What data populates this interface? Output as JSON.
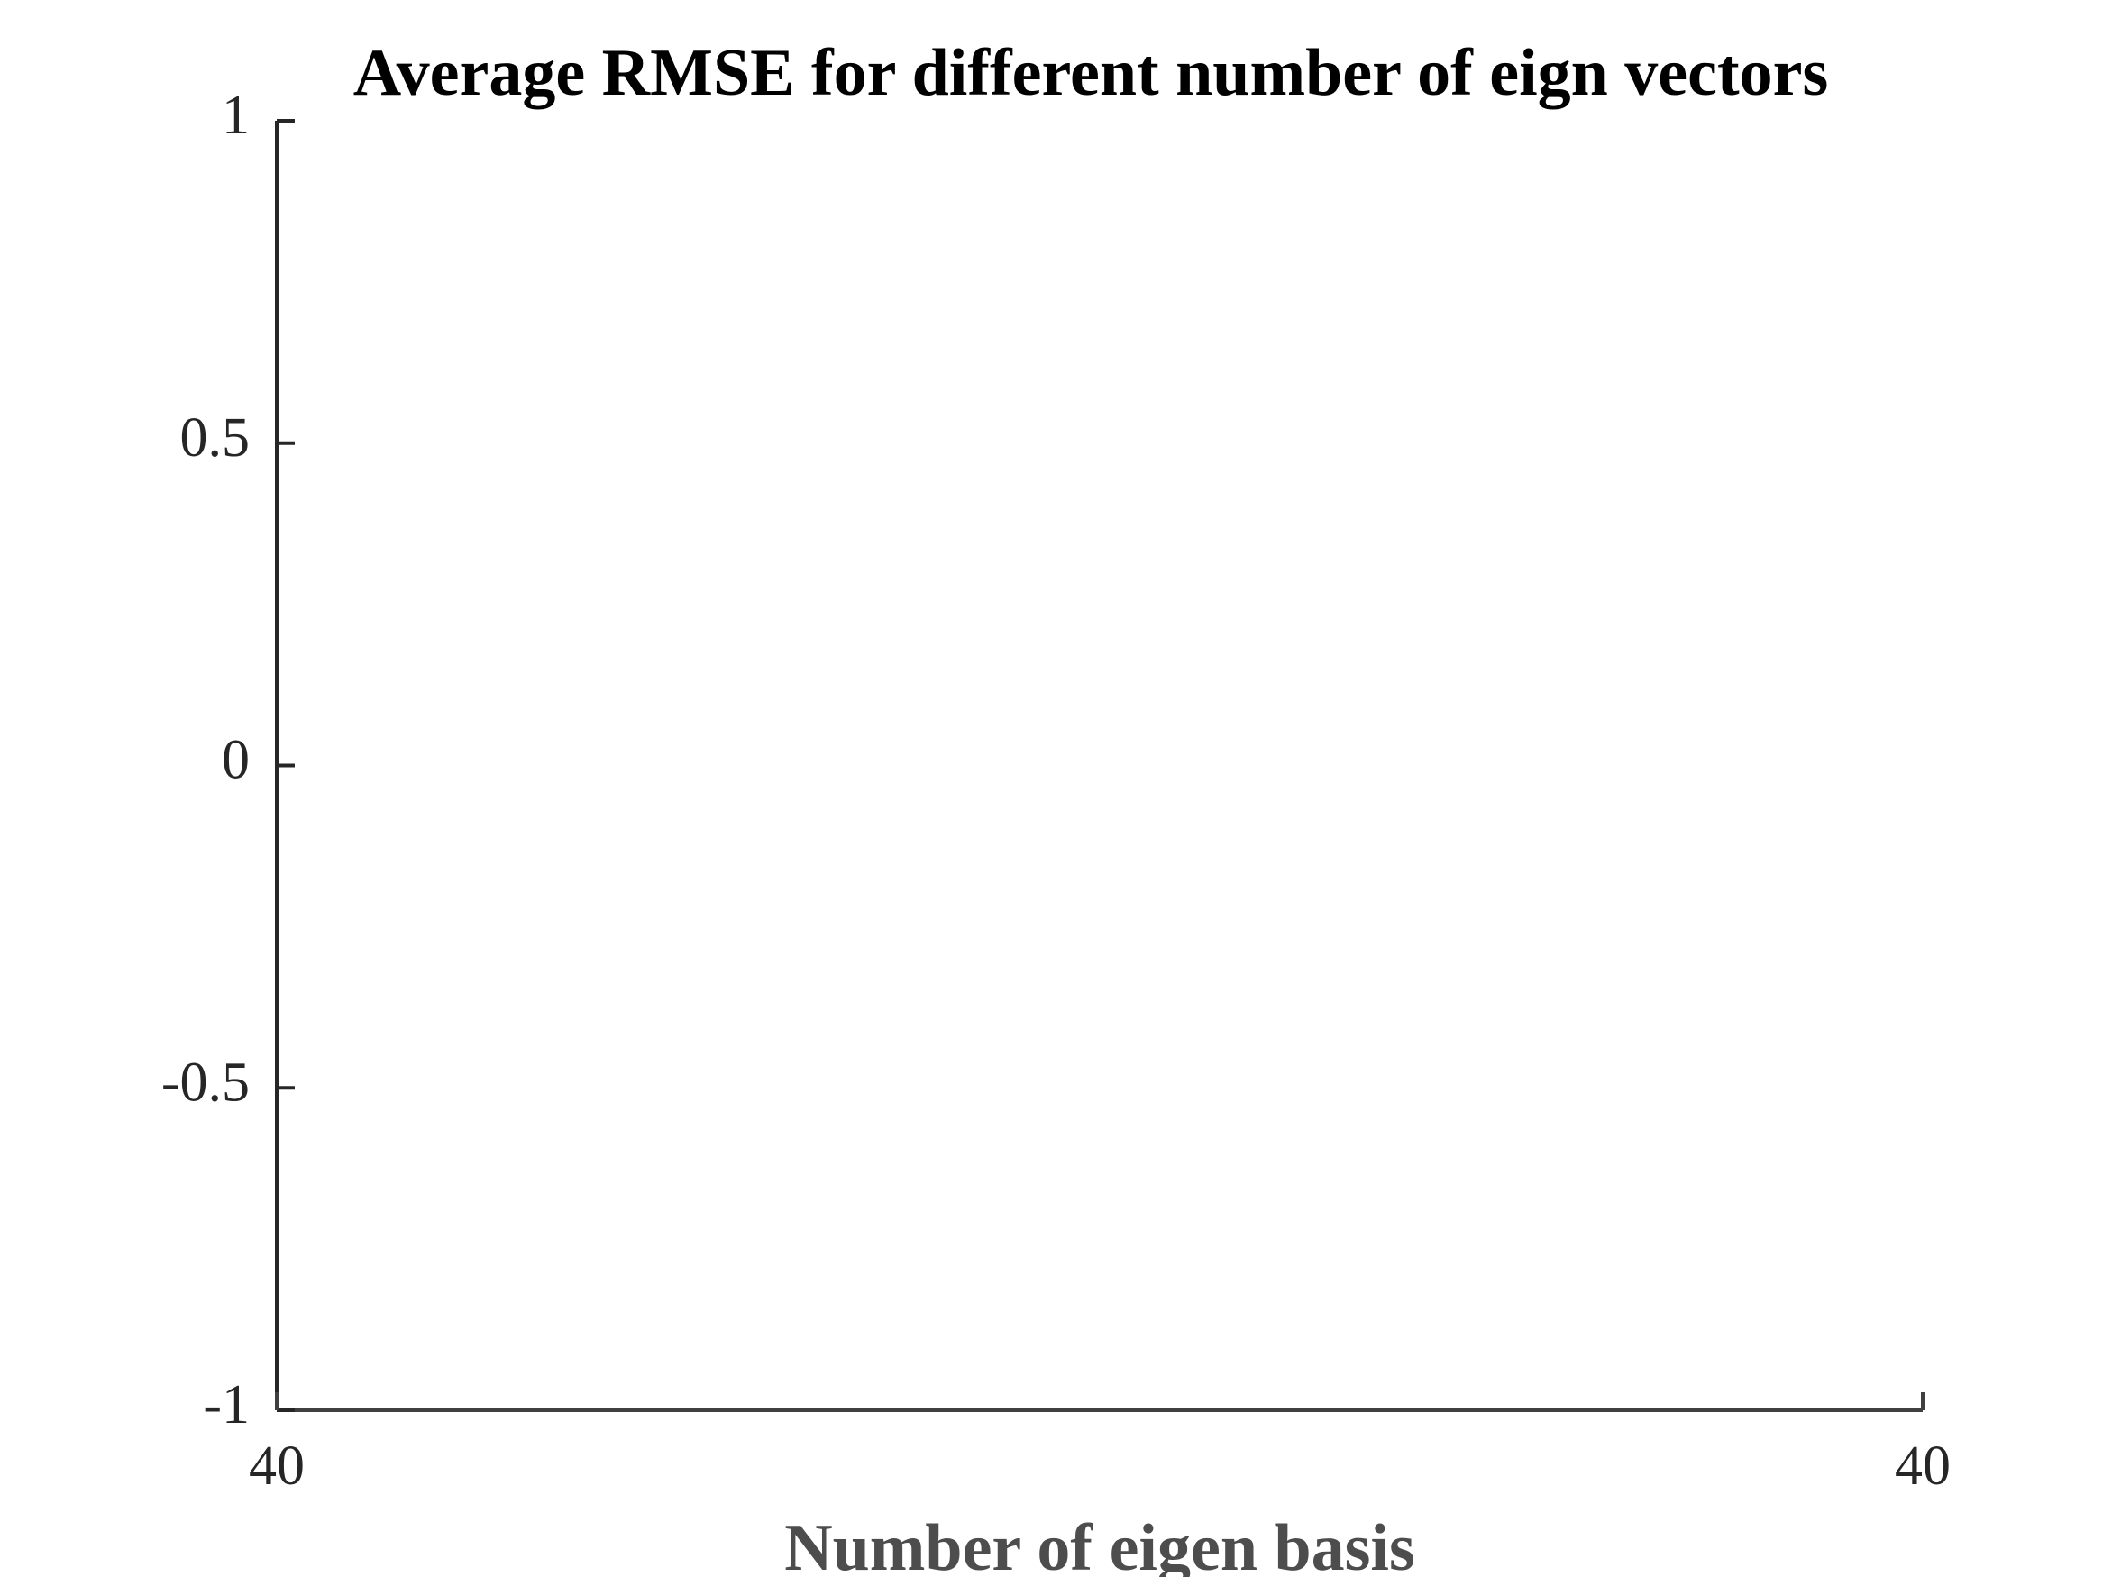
{
  "chart_data": {
    "type": "line",
    "title": "Average RMSE for different number of eign vectors",
    "x_label": "Number of eigen basis",
    "xlim": [
      39.99,
      40.01
    ],
    "xticks": [
      {
        "value": 39.99,
        "label": "40"
      },
      {
        "value": 40.01,
        "label": "40"
      }
    ],
    "ylim": [
      -1,
      1
    ],
    "yticks": [
      -1,
      -0.5,
      0,
      0.5,
      1
    ],
    "grid": false
  }
}
